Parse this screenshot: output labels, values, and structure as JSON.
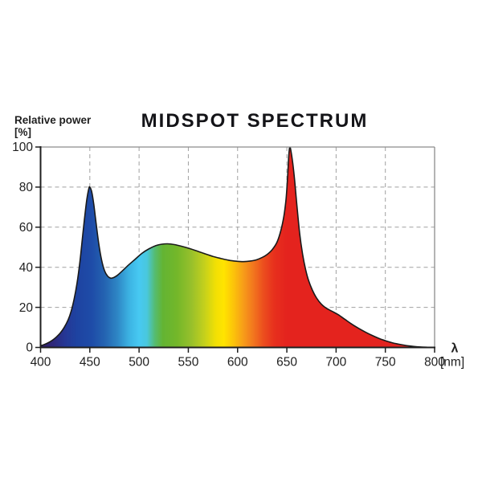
{
  "figure": {
    "title": "MIDSPOT SPECTRUM",
    "y_axis_label": "Relative power",
    "y_axis_unit": "[%]",
    "x_axis_symbol": "λ",
    "x_axis_unit": "[nm]"
  },
  "colors": {
    "background": "#ffffff",
    "axis": "#1f1f1f",
    "frame": "#8c8c8c",
    "grid": "#a0a0a0",
    "curve_outline": "#1a1a1a",
    "text": "#1f1f1f",
    "title": "#141418"
  },
  "chart_data": {
    "type": "area",
    "title": "MIDSPOT SPECTRUM",
    "xlabel": "λ [nm]",
    "ylabel": "Relative power [%]",
    "xlim": [
      400,
      800
    ],
    "ylim": [
      0,
      100
    ],
    "x_ticks": [
      400,
      450,
      500,
      550,
      600,
      650,
      700,
      750,
      800
    ],
    "y_ticks": [
      0,
      20,
      40,
      60,
      80,
      100
    ],
    "grid": "dashed",
    "legend": "none",
    "notable_peaks": [
      {
        "nm": 450,
        "percent": 80
      },
      {
        "nm": 653,
        "percent": 100
      }
    ],
    "notable_valleys": [
      {
        "nm": 471,
        "percent": 34.6
      },
      {
        "nm": 606,
        "percent": 42.8
      }
    ],
    "series": [
      {
        "name": "relative-power-spectrum",
        "points": [
          [
            400,
            0.8
          ],
          [
            404,
            1.5
          ],
          [
            408,
            2.4
          ],
          [
            412,
            3.6
          ],
          [
            416,
            5.2
          ],
          [
            420,
            7.2
          ],
          [
            424,
            10
          ],
          [
            428,
            13.8
          ],
          [
            431,
            18
          ],
          [
            434,
            24
          ],
          [
            437,
            32
          ],
          [
            440,
            43
          ],
          [
            443,
            57
          ],
          [
            445,
            66
          ],
          [
            447,
            74
          ],
          [
            449,
            79.3
          ],
          [
            450,
            80
          ],
          [
            452,
            77.5
          ],
          [
            454,
            71.5
          ],
          [
            456,
            63.5
          ],
          [
            459,
            52
          ],
          [
            462,
            43.5
          ],
          [
            465,
            38.2
          ],
          [
            468,
            35.6
          ],
          [
            471,
            34.6
          ],
          [
            474,
            34.8
          ],
          [
            478,
            36
          ],
          [
            483,
            38.2
          ],
          [
            489,
            41
          ],
          [
            496,
            44
          ],
          [
            503,
            47
          ],
          [
            510,
            49.2
          ],
          [
            517,
            50.8
          ],
          [
            523,
            51.5
          ],
          [
            529,
            51.7
          ],
          [
            536,
            51.3
          ],
          [
            543,
            50.5
          ],
          [
            551,
            49.4
          ],
          [
            559,
            48.1
          ],
          [
            567,
            46.7
          ],
          [
            575,
            45.4
          ],
          [
            583,
            44.4
          ],
          [
            591,
            43.5
          ],
          [
            599,
            43
          ],
          [
            606,
            42.8
          ],
          [
            613,
            43.1
          ],
          [
            619,
            43.7
          ],
          [
            625,
            44.9
          ],
          [
            630,
            46.4
          ],
          [
            635,
            48.7
          ],
          [
            640,
            52.5
          ],
          [
            644,
            58.5
          ],
          [
            647,
            65.5
          ],
          [
            649,
            73
          ],
          [
            650,
            79
          ],
          [
            651,
            87
          ],
          [
            652,
            96
          ],
          [
            653,
            100
          ],
          [
            654,
            98.5
          ],
          [
            656,
            92
          ],
          [
            658,
            83
          ],
          [
            660,
            72
          ],
          [
            663,
            57
          ],
          [
            666,
            46.5
          ],
          [
            669,
            39
          ],
          [
            672,
            33.5
          ],
          [
            676,
            28.5
          ],
          [
            680,
            24.8
          ],
          [
            685,
            21.6
          ],
          [
            690,
            19.6
          ],
          [
            696,
            18
          ],
          [
            702,
            16.4
          ],
          [
            709,
            14
          ],
          [
            716,
            11.6
          ],
          [
            723,
            9.5
          ],
          [
            730,
            7.6
          ],
          [
            737,
            5.9
          ],
          [
            744,
            4.4
          ],
          [
            751,
            3.2
          ],
          [
            758,
            2.2
          ],
          [
            765,
            1.5
          ],
          [
            772,
            0.9
          ],
          [
            779,
            0.5
          ],
          [
            786,
            0.25
          ],
          [
            793,
            0.1
          ],
          [
            800,
            0
          ]
        ]
      }
    ],
    "fill": "spectral-gradient",
    "gradient_stops": [
      {
        "nm": 400,
        "color": "#342168"
      },
      {
        "nm": 412,
        "color": "#2f2779"
      },
      {
        "nm": 425,
        "color": "#253795"
      },
      {
        "nm": 437,
        "color": "#1e43a1"
      },
      {
        "nm": 452,
        "color": "#1e4ca8"
      },
      {
        "nm": 465,
        "color": "#2463b1"
      },
      {
        "nm": 478,
        "color": "#2e86c5"
      },
      {
        "nm": 490,
        "color": "#3cb3e3"
      },
      {
        "nm": 500,
        "color": "#47c9f2"
      },
      {
        "nm": 508,
        "color": "#49c8dd"
      },
      {
        "nm": 516,
        "color": "#55bc71"
      },
      {
        "nm": 524,
        "color": "#63b433"
      },
      {
        "nm": 538,
        "color": "#73b72a"
      },
      {
        "nm": 553,
        "color": "#97c02b"
      },
      {
        "nm": 566,
        "color": "#c3d01d"
      },
      {
        "nm": 578,
        "color": "#f2e004"
      },
      {
        "nm": 586,
        "color": "#ffe400"
      },
      {
        "nm": 596,
        "color": "#fcc30a"
      },
      {
        "nm": 606,
        "color": "#f79c19"
      },
      {
        "nm": 616,
        "color": "#f2761e"
      },
      {
        "nm": 626,
        "color": "#ec4f1e"
      },
      {
        "nm": 637,
        "color": "#e7301d"
      },
      {
        "nm": 650,
        "color": "#e4231e"
      },
      {
        "nm": 800,
        "color": "#e3231f"
      }
    ]
  }
}
